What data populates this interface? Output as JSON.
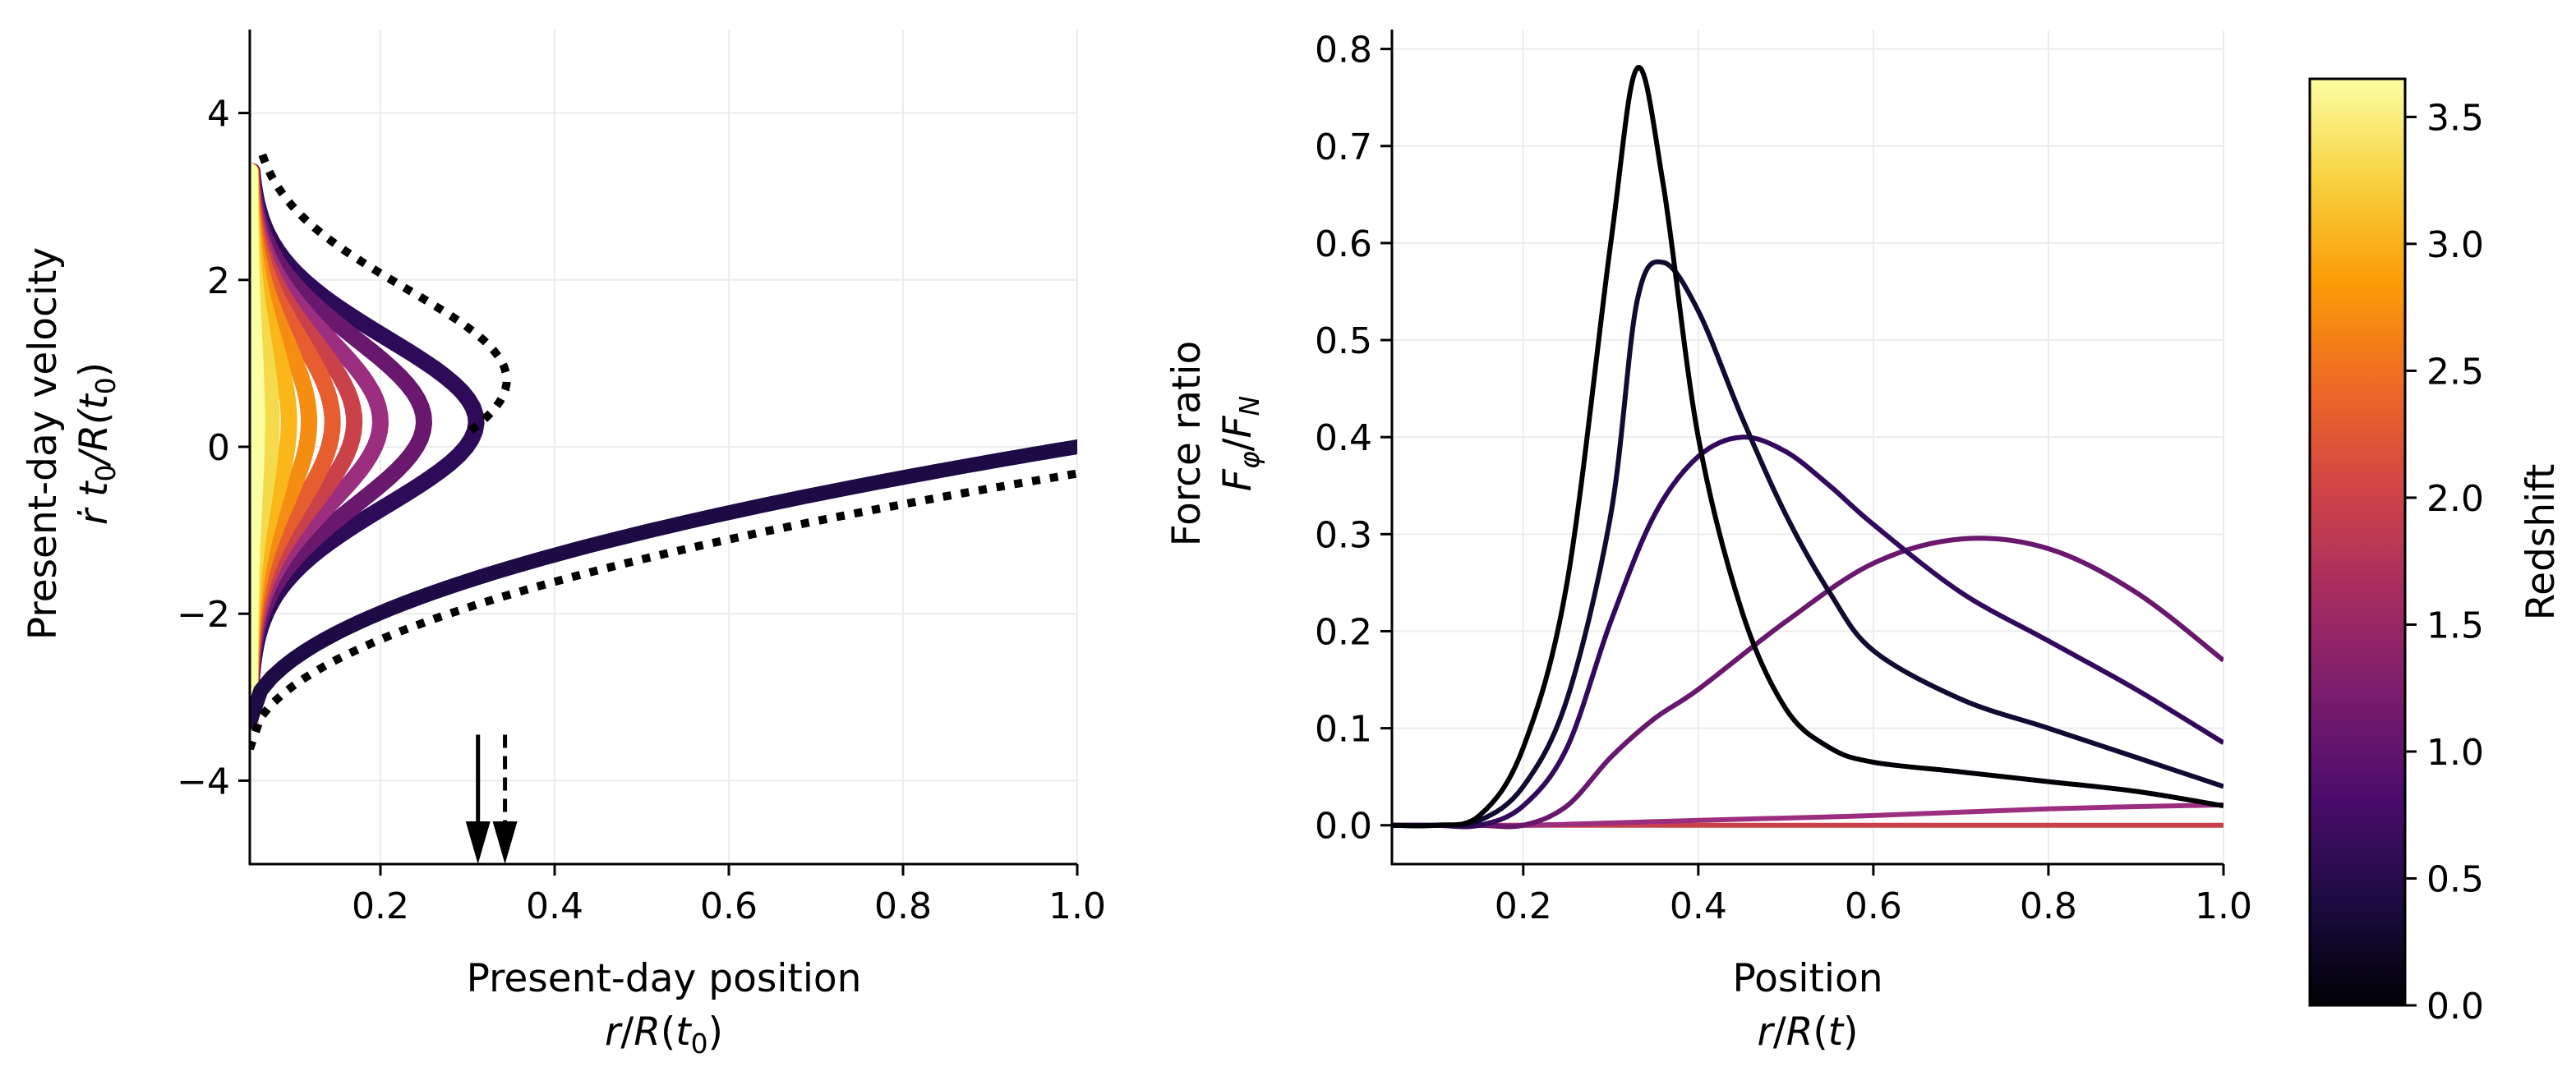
{
  "chart_data": [
    {
      "type": "line",
      "id": "phase-space",
      "xlabel": "Present-day position",
      "xlabel_math": {
        "pre": "r",
        "mid": "/",
        "fn": "R",
        "arg": "t",
        "sub": "0",
        "post": ")"
      },
      "ylabel": "Present-day velocity",
      "ylabel_math": {
        "dot": "ṙ",
        "t": "t",
        "sub": "0",
        "rest": "/R(t",
        "sub2": "0",
        "close": ")"
      },
      "xlim": [
        0.05,
        1.0
      ],
      "ylim": [
        -5,
        5
      ],
      "xticks": [
        0.2,
        0.4,
        0.6,
        0.8,
        1.0
      ],
      "xtick_labels": [
        "0.2",
        "0.4",
        "0.6",
        "0.8",
        "1.0"
      ],
      "yticks": [
        4,
        2,
        0,
        -2,
        -4
      ],
      "ytick_labels": [
        "4",
        "2",
        "0",
        "−2",
        "−4"
      ],
      "grid": true,
      "nose_series": [
        {
          "redshift": 3.6,
          "color": "#fcffa4",
          "nose_x": 0.058
        },
        {
          "redshift": 3.3,
          "color": "#f5db4c",
          "nose_x": 0.075
        },
        {
          "redshift": 3.0,
          "color": "#fbb61a",
          "nose_x": 0.095
        },
        {
          "redshift": 2.6,
          "color": "#f58d13",
          "nose_x": 0.118
        },
        {
          "redshift": 2.2,
          "color": "#e65d2f",
          "nose_x": 0.145
        },
        {
          "redshift": 1.8,
          "color": "#cb4149",
          "nose_x": 0.17
        },
        {
          "redshift": 1.3,
          "color": "#9c2e7f",
          "nose_x": 0.2
        },
        {
          "redshift": 0.8,
          "color": "#6a176e",
          "nose_x": 0.25
        },
        {
          "redshift": 0.4,
          "color": "#2d0b59",
          "nose_x": 0.31
        }
      ],
      "dotted_curve": {
        "style": "dotted",
        "color": "#000000",
        "nose_x": 0.345,
        "nose_y": 0.8
      },
      "arrows": [
        {
          "x": 0.312,
          "style": "solid"
        },
        {
          "x": 0.343,
          "style": "dashed"
        }
      ]
    },
    {
      "type": "line",
      "id": "force-ratio",
      "xlabel": "Position",
      "xlabel_math": {
        "pre": "r",
        "mid": "/",
        "fn": "R",
        "arg": "t",
        "post": ")"
      },
      "ylabel": "Force ratio",
      "ylabel_math": {
        "num": "F",
        "num_sub": "φ",
        "den": "F",
        "den_sub": "N"
      },
      "xlim": [
        0.05,
        1.0
      ],
      "ylim": [
        -0.04,
        0.82
      ],
      "xticks": [
        0.2,
        0.4,
        0.6,
        0.8,
        1.0
      ],
      "xtick_labels": [
        "0.2",
        "0.4",
        "0.6",
        "0.8",
        "1.0"
      ],
      "yticks": [
        0.0,
        0.1,
        0.2,
        0.3,
        0.4,
        0.5,
        0.6,
        0.7,
        0.8
      ],
      "ytick_labels": [
        "0.0",
        "0.1",
        "0.2",
        "0.3",
        "0.4",
        "0.5",
        "0.6",
        "0.7",
        "0.8"
      ],
      "grid": true,
      "series": [
        {
          "redshift": 0.0,
          "color": "#000004",
          "x": [
            0.05,
            0.1,
            0.15,
            0.2,
            0.25,
            0.3,
            0.33,
            0.36,
            0.4,
            0.45,
            0.5,
            0.55,
            0.6,
            0.7,
            0.8,
            0.9,
            1.0
          ],
          "y": [
            0.0,
            0.0,
            0.01,
            0.08,
            0.25,
            0.6,
            0.78,
            0.66,
            0.4,
            0.22,
            0.12,
            0.08,
            0.065,
            0.055,
            0.045,
            0.035,
            0.02
          ]
        },
        {
          "redshift": 0.2,
          "color": "#120a32",
          "x": [
            0.05,
            0.1,
            0.15,
            0.2,
            0.25,
            0.3,
            0.33,
            0.36,
            0.4,
            0.45,
            0.5,
            0.55,
            0.6,
            0.7,
            0.8,
            0.9,
            1.0
          ],
          "y": [
            0.0,
            0.0,
            0.005,
            0.04,
            0.13,
            0.32,
            0.54,
            0.58,
            0.53,
            0.42,
            0.32,
            0.24,
            0.18,
            0.13,
            0.1,
            0.07,
            0.04
          ]
        },
        {
          "redshift": 0.5,
          "color": "#33095e",
          "x": [
            0.05,
            0.1,
            0.15,
            0.2,
            0.25,
            0.3,
            0.35,
            0.4,
            0.45,
            0.5,
            0.55,
            0.6,
            0.7,
            0.8,
            0.9,
            1.0
          ],
          "y": [
            0.0,
            0.0,
            0.0,
            0.02,
            0.08,
            0.21,
            0.32,
            0.38,
            0.4,
            0.385,
            0.35,
            0.31,
            0.24,
            0.19,
            0.14,
            0.085
          ]
        },
        {
          "redshift": 1.0,
          "color": "#6a176e",
          "x": [
            0.05,
            0.1,
            0.15,
            0.2,
            0.25,
            0.3,
            0.35,
            0.4,
            0.5,
            0.6,
            0.7,
            0.8,
            0.9,
            1.0
          ],
          "y": [
            0.0,
            0.0,
            0.0,
            0.0,
            0.02,
            0.07,
            0.11,
            0.14,
            0.21,
            0.27,
            0.295,
            0.285,
            0.24,
            0.17
          ]
        },
        {
          "redshift": 1.3,
          "color": "#9c2e7f",
          "x": [
            0.05,
            0.2,
            0.4,
            0.6,
            0.8,
            1.0
          ],
          "y": [
            0.0,
            0.0,
            0.005,
            0.01,
            0.017,
            0.021
          ]
        },
        {
          "redshift": 1.7,
          "color": "#cb4149",
          "x": [
            0.05,
            0.2,
            0.4,
            0.6,
            0.8,
            1.0
          ],
          "y": [
            0.0,
            0.0,
            0.0,
            0.0,
            0.0,
            0.0
          ]
        }
      ]
    },
    {
      "type": "colorbar",
      "id": "redshift-colorbar",
      "label": "Redshift",
      "range": [
        0.0,
        3.65
      ],
      "ticks": [
        0.0,
        0.5,
        1.0,
        1.5,
        2.0,
        2.5,
        3.0,
        3.5
      ],
      "tick_labels": [
        "0.0",
        "0.5",
        "1.0",
        "1.5",
        "2.0",
        "2.5",
        "3.0",
        "3.5"
      ],
      "colormap": "inferno",
      "colors": [
        "#000004",
        "#1b0c41",
        "#4a0c6b",
        "#781c6d",
        "#a52c60",
        "#cf4446",
        "#ed6925",
        "#fb9b06",
        "#f7d13d",
        "#fcffa4"
      ]
    }
  ]
}
